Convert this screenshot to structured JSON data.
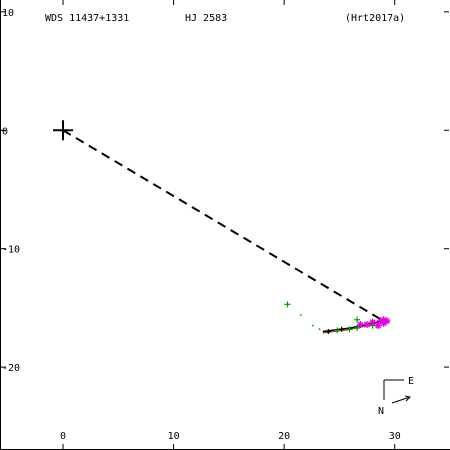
{
  "header": {
    "wds_id": "WDS 11437+1331",
    "discoverer": "HJ 2583",
    "reference": "(Hrt2017a)"
  },
  "compass": {
    "east_label": "E",
    "north_label": "N"
  },
  "colors": {
    "axes": "#000000",
    "orbit": "#000000",
    "measure_green": "#00a000",
    "measure_magenta": "#e000e0",
    "residual_red": "#d00000"
  },
  "chart_data": {
    "type": "scatter",
    "x_ticks": [
      0,
      10,
      20,
      30
    ],
    "y_ticks": [
      10,
      0,
      -10,
      -20
    ],
    "x_range": [
      -5.7,
      35
    ],
    "y_range": [
      -27,
      11
    ],
    "primary": {
      "x": 0,
      "y": 0
    },
    "orbit_path": [
      [
        23.5,
        -17.0
      ],
      [
        26.0,
        -16.7
      ],
      [
        28.0,
        -16.3
      ],
      [
        29.2,
        -16.0
      ]
    ],
    "origin_link": {
      "from": [
        0,
        0
      ],
      "to": [
        28.8,
        -16.0
      ]
    },
    "residual_dots": [
      [
        20.3,
        -14.7
      ],
      [
        21.5,
        -15.6
      ],
      [
        22.6,
        -16.5
      ],
      [
        23.2,
        -16.8
      ]
    ],
    "green_points": [
      [
        20.3,
        -14.7
      ],
      [
        24.8,
        -16.9
      ],
      [
        25.9,
        -16.8
      ],
      [
        26.6,
        -16.7
      ],
      [
        26.6,
        -16.0
      ],
      [
        27.3,
        -16.4
      ],
      [
        28.0,
        -16.5
      ]
    ],
    "magenta_points": [
      [
        26.9,
        -16.4
      ],
      [
        27.5,
        -16.4
      ],
      [
        28.0,
        -16.2
      ],
      [
        28.5,
        -16.5
      ],
      [
        28.7,
        -16.1
      ],
      [
        29.0,
        -16.0
      ],
      [
        29.3,
        -16.1
      ],
      [
        29.0,
        -16.3
      ]
    ],
    "black_points": [
      [
        24.0,
        -17.0
      ],
      [
        25.2,
        -16.8
      ]
    ]
  }
}
